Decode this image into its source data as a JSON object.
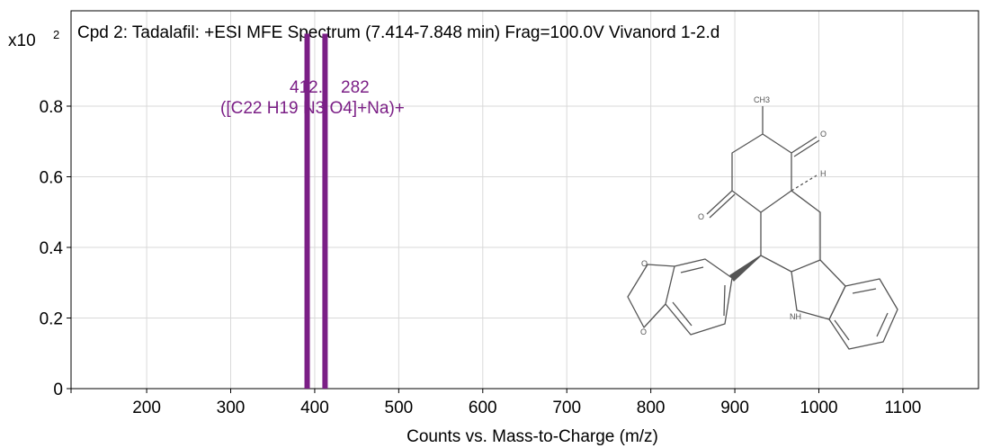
{
  "chart_data": {
    "type": "bar",
    "title": "Cpd 2: Tadalafil: +ESI MFE Spectrum (7.414-7.848 min) Frag=100.0V Vivanord 1-2.d",
    "xlabel": "Counts vs. Mass-to-Charge (m/z)",
    "ylabel": "",
    "y_multiplier": "x10",
    "y_multiplier_exponent": "2",
    "xlim": [
      110,
      1190
    ],
    "ylim": [
      0,
      1.07
    ],
    "x_ticks": [
      200,
      300,
      400,
      500,
      600,
      700,
      800,
      900,
      1000,
      1100
    ],
    "y_ticks": [
      "0",
      "0.2",
      "0.4",
      "0.6",
      "0.8"
    ],
    "y_tick_values": [
      0,
      0.2,
      0.4,
      0.6,
      0.8
    ],
    "grid": true,
    "colors": {
      "peak": "#7b1f86",
      "label": "#7b1f86",
      "grid": "#d9d9d9",
      "axis": "#000000"
    },
    "series": [
      {
        "values": [
          {
            "x": 391,
            "y": 1.0
          },
          {
            "x": 412.282,
            "y": 1.0
          }
        ]
      }
    ],
    "annotations": [
      {
        "line1": "412.",
        "line2": "282",
        "formula": "([C22 H19 N3 O4]+Na)+"
      }
    ],
    "structure_labels": {
      "methyl": "CH3",
      "hydrogen": "H",
      "nh": "NH",
      "carbonyl_o": "O",
      "ring_o": "O"
    }
  }
}
